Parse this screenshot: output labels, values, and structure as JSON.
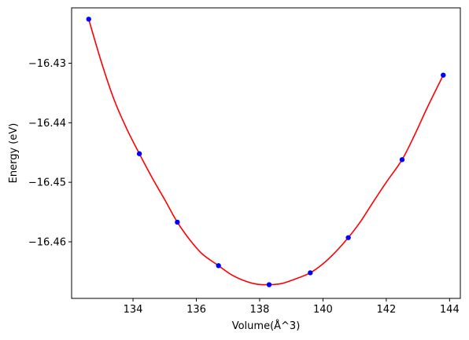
{
  "chart_data": {
    "type": "scatter",
    "title": "",
    "xlabel": "Volume(Å^3)",
    "ylabel": "Energy (eV)",
    "xlim": [
      132.06,
      144.34
    ],
    "ylim": [
      -16.4695,
      -16.4207
    ],
    "xticks": [
      134,
      136,
      138,
      140,
      142,
      144
    ],
    "yticks": [
      -16.43,
      -16.44,
      -16.45,
      -16.46
    ],
    "xtick_labels": [
      "134",
      "136",
      "138",
      "140",
      "142",
      "144"
    ],
    "ytick_labels": [
      "−16.43",
      "−16.44",
      "−16.45",
      "−16.46"
    ],
    "grid": false,
    "series": [
      {
        "kind": "points",
        "color": "#0000ff",
        "marker": "circle",
        "x": [
          132.6,
          134.2,
          135.4,
          136.7,
          138.3,
          139.6,
          140.8,
          142.5,
          143.8
        ],
        "y": [
          -16.4226,
          -16.4452,
          -16.4567,
          -16.464,
          -16.4672,
          -16.4652,
          -16.4593,
          -16.4462,
          -16.432
        ]
      },
      {
        "kind": "fit-curve",
        "color": "#ff0000",
        "x": [
          132.6,
          133.0,
          133.4,
          133.8,
          134.2,
          134.6,
          135.0,
          135.4,
          135.8,
          136.2,
          136.7,
          137.1,
          137.5,
          137.9,
          138.3,
          138.7,
          139.1,
          139.6,
          140.0,
          140.4,
          140.8,
          141.2,
          141.6,
          142.0,
          142.5,
          142.9,
          143.3,
          143.8
        ],
        "y": [
          -16.4226,
          -16.4298,
          -16.4361,
          -16.441,
          -16.4452,
          -16.4492,
          -16.4529,
          -16.4567,
          -16.4597,
          -16.4621,
          -16.464,
          -16.4655,
          -16.4665,
          -16.4671,
          -16.4672,
          -16.467,
          -16.4663,
          -16.4652,
          -16.4637,
          -16.4617,
          -16.4593,
          -16.4565,
          -16.4532,
          -16.45,
          -16.4462,
          -16.442,
          -16.4374,
          -16.432
        ]
      }
    ]
  }
}
